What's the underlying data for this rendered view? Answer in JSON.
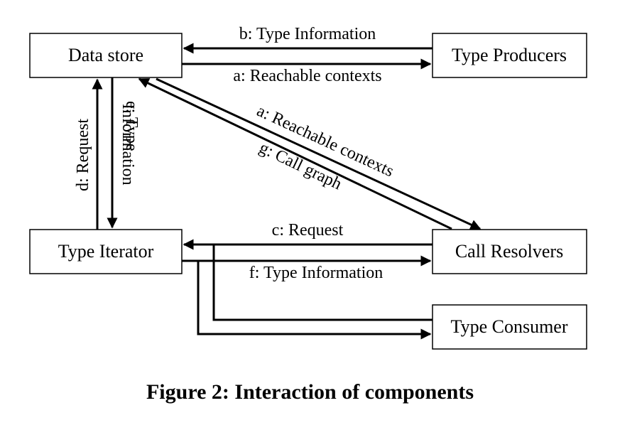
{
  "nodes": {
    "data_store": "Data store",
    "type_producers": "Type Producers",
    "type_iterator": "Type Iterator",
    "call_resolvers": "Call Resolvers",
    "type_consumer": "Type Consumer"
  },
  "edges": {
    "b_type_information": "b: Type Information",
    "a_reachable_contexts_top": "a: Reachable contexts",
    "a_reachable_contexts_diag": "a: Reachable contexts",
    "g_call_graph": "g: Call graph",
    "d_request": "d: Request",
    "e_type_line1": "e: Type",
    "e_type_line2": "Information",
    "c_request": "c: Request",
    "f_type_information": "f: Type Information"
  },
  "caption": "Figure 2: Interaction of components"
}
